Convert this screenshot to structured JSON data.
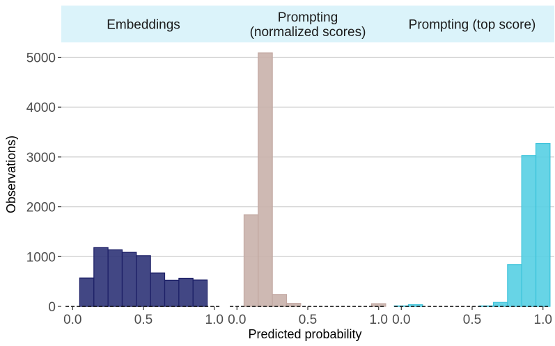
{
  "chart_data": {
    "type": "bar",
    "xlabel": "Predicted probability",
    "ylabel": "Observations)",
    "ylim": [
      0,
      5300
    ],
    "y_ticks": [
      0,
      1000,
      2000,
      3000,
      4000,
      5000
    ],
    "x_ticks": [
      0.0,
      0.5,
      1.0
    ],
    "x_tick_labels": [
      "0.0",
      "0.5",
      "1.0"
    ],
    "xlim": [
      -0.08,
      1.08
    ],
    "bin_width": 0.1,
    "bin_starts": [
      -0.05,
      0.05,
      0.15,
      0.25,
      0.35,
      0.45,
      0.55,
      0.65,
      0.75,
      0.85,
      0.95
    ],
    "grid": "horizontal",
    "baseline": "dashed line at 0",
    "panels": [
      {
        "title_lines": [
          "Embeddings"
        ],
        "fill": "#2e3377",
        "stroke": "#1c1f66",
        "values": [
          0,
          570,
          1180,
          1135,
          1085,
          1020,
          670,
          525,
          565,
          530,
          null
        ]
      },
      {
        "title_lines": [
          "Prompting",
          "(normalized scores)"
        ],
        "fill": "#c9b1ab",
        "stroke": "#c2a8a2",
        "values": [
          0,
          1840,
          5090,
          240,
          60,
          0,
          0,
          0,
          0,
          0,
          55
        ]
      },
      {
        "title_lines": [
          "Prompting (top score)"
        ],
        "fill": "#56cfe3",
        "stroke": "#3cc3da",
        "values": [
          10,
          35,
          0,
          0,
          0,
          0,
          10,
          80,
          840,
          3030,
          3270
        ]
      }
    ],
    "colors": {
      "strip_background": "#dbf3fa",
      "gridline": "#d0d0d0",
      "panel_background": "#ffffff"
    }
  }
}
